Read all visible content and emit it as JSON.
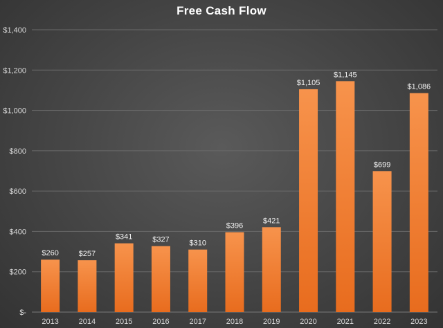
{
  "chart_data": {
    "type": "bar",
    "title": "Free Cash Flow",
    "xlabel": "",
    "ylabel": "",
    "categories": [
      "2013",
      "2014",
      "2015",
      "2016",
      "2017",
      "2018",
      "2019",
      "2020",
      "2021",
      "2022",
      "2023"
    ],
    "values": [
      260,
      257,
      341,
      327,
      310,
      396,
      421,
      1105,
      1145,
      699,
      1086
    ],
    "data_labels": [
      "$260",
      "$257",
      "$341",
      "$327",
      "$310",
      "$396",
      "$421",
      "$1,105",
      "$1,145",
      "$699",
      "$1,086"
    ],
    "ylim": [
      0,
      1400
    ],
    "yticks": [
      0,
      200,
      400,
      600,
      800,
      1000,
      1200,
      1400
    ],
    "ytick_labels": [
      "$-",
      "$200",
      "$400",
      "$600",
      "$800",
      "$1,000",
      "$1,200",
      "$1,400"
    ],
    "grid": true,
    "legend": "none",
    "colors": {
      "bar_top": "#f7934c",
      "bar_bottom": "#e86c1e",
      "background": "#444444",
      "text": "#ffffff"
    }
  }
}
